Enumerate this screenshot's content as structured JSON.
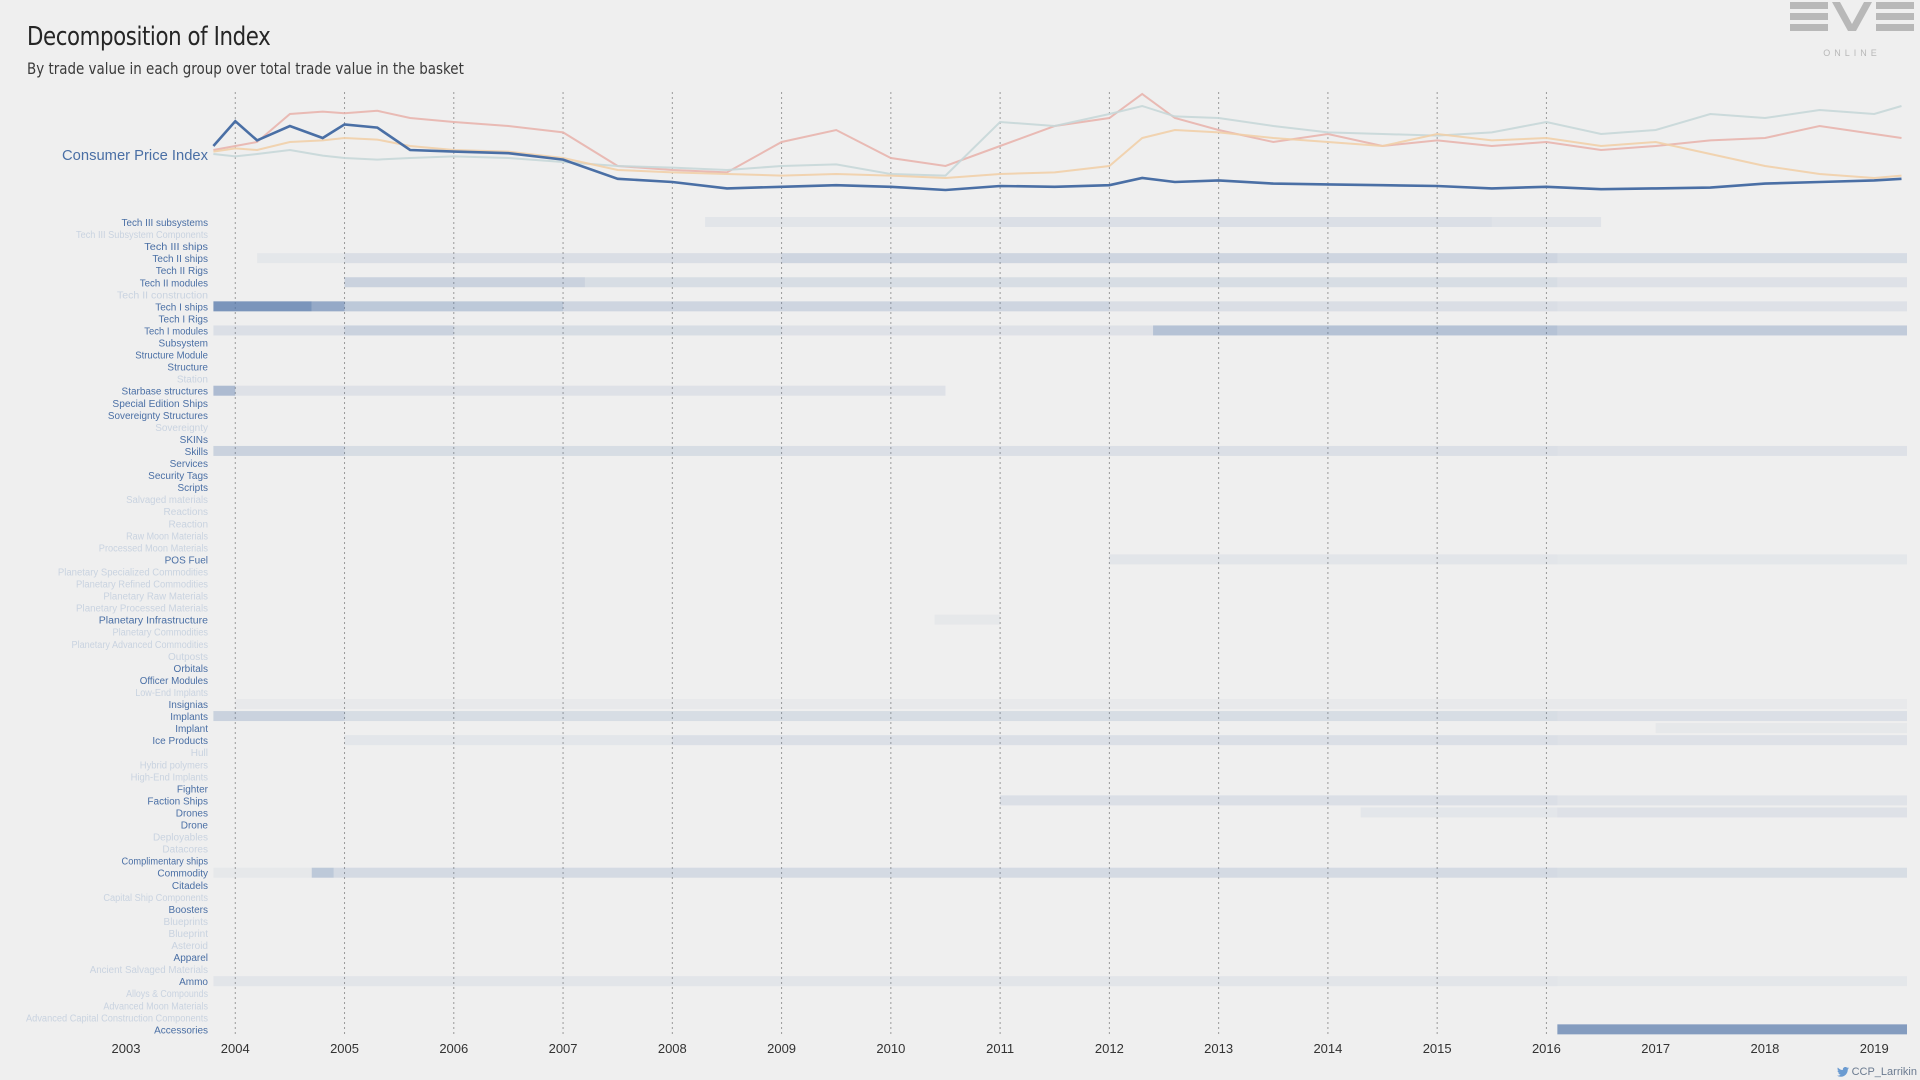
{
  "header": {
    "title": "Decomposition of Index",
    "subtitle": "By trade value in each group over total trade value in the basket"
  },
  "logo": {
    "main": "EVE",
    "sub": "ONLINE"
  },
  "credit": {
    "icon": "twitter-icon",
    "handle": "CCP_Larrikin"
  },
  "colors": {
    "background": "#efefef",
    "cpi_line": "#4a6fa5",
    "label_strong": "#4a6fa5",
    "label_faint": "#c9d3e0",
    "heat_base": "#4a6fa5",
    "series_colors": [
      "#e8b4ad",
      "#c7d7d8",
      "#f1cfa8"
    ]
  },
  "chart_data": [
    {
      "type": "line",
      "ylabel": "Consumer Price Index",
      "x": [
        2003.8,
        2004.0,
        2004.2,
        2004.5,
        2004.8,
        2005.0,
        2005.3,
        2005.6,
        2006.0,
        2006.5,
        2007.0,
        2007.5,
        2008.0,
        2008.5,
        2009.0,
        2009.5,
        2010.0,
        2010.5,
        2011.0,
        2011.5,
        2012.0,
        2012.3,
        2012.6,
        2013.0,
        2013.5,
        2014.0,
        2014.5,
        2015.0,
        2015.5,
        2016.0,
        2016.5,
        2017.0,
        2017.5,
        2018.0,
        2018.5,
        2019.0,
        2019.25
      ],
      "series": [
        {
          "values": [
            0.55,
            0.86,
            0.62,
            0.8,
            0.65,
            0.82,
            0.78,
            0.5,
            0.48,
            0.46,
            0.38,
            0.14,
            0.1,
            0.02,
            0.04,
            0.06,
            0.04,
            0.0,
            0.05,
            0.04,
            0.06,
            0.15,
            0.1,
            0.12,
            0.08,
            0.07,
            0.06,
            0.05,
            0.02,
            0.04,
            0.01,
            0.02,
            0.03,
            0.08,
            0.1,
            0.12,
            0.14
          ]
        },
        {
          "values": [
            0.5,
            0.55,
            0.6,
            0.95,
            0.98,
            0.96,
            0.99,
            0.9,
            0.85,
            0.8,
            0.72,
            0.3,
            0.25,
            0.22,
            0.6,
            0.75,
            0.4,
            0.3,
            0.55,
            0.8,
            0.9,
            1.2,
            0.9,
            0.75,
            0.6,
            0.7,
            0.55,
            0.62,
            0.55,
            0.6,
            0.5,
            0.55,
            0.62,
            0.65,
            0.8,
            0.7,
            0.65
          ]
        },
        {
          "values": [
            0.45,
            0.42,
            0.45,
            0.5,
            0.43,
            0.4,
            0.38,
            0.4,
            0.42,
            0.4,
            0.35,
            0.3,
            0.28,
            0.25,
            0.3,
            0.32,
            0.2,
            0.18,
            0.85,
            0.8,
            0.95,
            1.05,
            0.92,
            0.9,
            0.8,
            0.72,
            0.7,
            0.68,
            0.72,
            0.85,
            0.7,
            0.75,
            0.95,
            0.9,
            1.0,
            0.95,
            1.05
          ]
        },
        {
          "values": [
            0.48,
            0.52,
            0.5,
            0.6,
            0.62,
            0.65,
            0.63,
            0.55,
            0.5,
            0.48,
            0.4,
            0.25,
            0.22,
            0.2,
            0.18,
            0.2,
            0.18,
            0.15,
            0.2,
            0.22,
            0.3,
            0.65,
            0.75,
            0.72,
            0.65,
            0.6,
            0.55,
            0.7,
            0.62,
            0.65,
            0.55,
            0.6,
            0.45,
            0.3,
            0.2,
            0.15,
            0.18
          ]
        }
      ]
    },
    {
      "type": "heatmap",
      "x_ticks": [
        "2003",
        "2004",
        "2005",
        "2006",
        "2007",
        "2008",
        "2009",
        "2010",
        "2011",
        "2012",
        "2013",
        "2014",
        "2015",
        "2016",
        "2017",
        "2018",
        "2019"
      ],
      "vlines": [
        2004,
        2005,
        2006,
        2007,
        2008,
        2009,
        2010,
        2011,
        2012,
        2013,
        2014,
        2015,
        2016
      ],
      "xlim": [
        2003.0,
        2019.3
      ],
      "rows": [
        {
          "label": "Tech III subsystems",
          "strong": true,
          "spans": [
            [
              2008.3,
              2011.0,
              0.08
            ],
            [
              2011.0,
              2015.5,
              0.12
            ],
            [
              2015.5,
              2016.5,
              0.09
            ]
          ]
        },
        {
          "label": "Tech III Subsystem Components",
          "strong": false,
          "spans": []
        },
        {
          "label": "Tech III ships",
          "strong": true,
          "spans": []
        },
        {
          "label": "Tech II ships",
          "strong": true,
          "spans": [
            [
              2004.2,
              2005.0,
              0.06
            ],
            [
              2005.0,
              2009.0,
              0.13
            ],
            [
              2009.0,
              2016.1,
              0.2
            ],
            [
              2016.1,
              2019.3,
              0.15
            ]
          ]
        },
        {
          "label": "Tech II Rigs",
          "strong": true,
          "spans": []
        },
        {
          "label": "Tech II modules",
          "strong": true,
          "spans": [
            [
              2005.0,
              2007.2,
              0.22
            ],
            [
              2007.2,
              2016.1,
              0.14
            ],
            [
              2016.1,
              2019.3,
              0.1
            ]
          ]
        },
        {
          "label": "Tech II construction",
          "strong": false,
          "spans": []
        },
        {
          "label": "Tech I ships",
          "strong": true,
          "spans": [
            [
              2003.8,
              2004.7,
              0.7
            ],
            [
              2004.7,
              2005.0,
              0.55
            ],
            [
              2005.0,
              2007.0,
              0.3
            ],
            [
              2007.0,
              2012.0,
              0.2
            ],
            [
              2012.0,
              2016.1,
              0.13
            ],
            [
              2016.1,
              2019.3,
              0.1
            ]
          ]
        },
        {
          "label": "Tech I Rigs",
          "strong": true,
          "spans": []
        },
        {
          "label": "Tech I modules",
          "strong": true,
          "spans": [
            [
              2003.8,
              2005.0,
              0.12
            ],
            [
              2005.0,
              2006.0,
              0.22
            ],
            [
              2006.0,
              2009.0,
              0.14
            ],
            [
              2009.0,
              2012.4,
              0.1
            ],
            [
              2012.4,
              2016.1,
              0.35
            ],
            [
              2016.1,
              2019.3,
              0.28
            ]
          ]
        },
        {
          "label": "Subsystem",
          "strong": true,
          "spans": []
        },
        {
          "label": "Structure Module",
          "strong": true,
          "spans": []
        },
        {
          "label": "Structure",
          "strong": true,
          "spans": []
        },
        {
          "label": "Station",
          "strong": false,
          "spans": []
        },
        {
          "label": "Starbase structures",
          "strong": true,
          "spans": [
            [
              2003.8,
              2004.0,
              0.4
            ],
            [
              2004.0,
              2010.5,
              0.1
            ]
          ]
        },
        {
          "label": "Special Edition Ships",
          "strong": true,
          "spans": []
        },
        {
          "label": "Sovereignty Structures",
          "strong": true,
          "spans": []
        },
        {
          "label": "Sovereignty",
          "strong": false,
          "spans": []
        },
        {
          "label": "SKINs",
          "strong": true,
          "spans": []
        },
        {
          "label": "Skills",
          "strong": true,
          "spans": [
            [
              2003.8,
              2005.0,
              0.22
            ],
            [
              2005.0,
              2009.0,
              0.14
            ],
            [
              2009.0,
              2016.1,
              0.12
            ],
            [
              2016.1,
              2019.3,
              0.1
            ]
          ]
        },
        {
          "label": "Services",
          "strong": true,
          "spans": []
        },
        {
          "label": "Security Tags",
          "strong": true,
          "spans": []
        },
        {
          "label": "Scripts",
          "strong": true,
          "spans": []
        },
        {
          "label": "Salvaged materials",
          "strong": false,
          "spans": []
        },
        {
          "label": "Reactions",
          "strong": false,
          "spans": []
        },
        {
          "label": "Reaction",
          "strong": false,
          "spans": []
        },
        {
          "label": "Raw Moon Materials",
          "strong": false,
          "spans": []
        },
        {
          "label": "Processed Moon Materials",
          "strong": false,
          "spans": []
        },
        {
          "label": "POS Fuel",
          "strong": true,
          "spans": [
            [
              2012.0,
              2016.1,
              0.08
            ],
            [
              2016.1,
              2019.3,
              0.06
            ]
          ]
        },
        {
          "label": "Planetary Specialized Commodities",
          "strong": false,
          "spans": []
        },
        {
          "label": "Planetary Refined Commodities",
          "strong": false,
          "spans": []
        },
        {
          "label": "Planetary Raw Materials",
          "strong": false,
          "spans": []
        },
        {
          "label": "Planetary Processed Materials",
          "strong": false,
          "spans": []
        },
        {
          "label": "Planetary Infrastructure",
          "strong": true,
          "spans": [
            [
              2010.4,
              2011.0,
              0.05
            ]
          ]
        },
        {
          "label": "Planetary Commodities",
          "strong": false,
          "spans": []
        },
        {
          "label": "Planetary Advanced Commodities",
          "strong": false,
          "spans": []
        },
        {
          "label": "Outposts",
          "strong": false,
          "spans": []
        },
        {
          "label": "Orbitals",
          "strong": true,
          "spans": []
        },
        {
          "label": "Officer Modules",
          "strong": true,
          "spans": []
        },
        {
          "label": "Low-End Implants",
          "strong": false,
          "spans": []
        },
        {
          "label": "Insignias",
          "strong": true,
          "spans": [
            [
              2004.0,
              2019.3,
              0.04
            ]
          ]
        },
        {
          "label": "Implants",
          "strong": true,
          "spans": [
            [
              2003.8,
              2005.0,
              0.22
            ],
            [
              2005.0,
              2016.1,
              0.14
            ],
            [
              2016.1,
              2019.3,
              0.12
            ]
          ]
        },
        {
          "label": "Implant",
          "strong": true,
          "spans": [
            [
              2017.0,
              2019.3,
              0.05
            ]
          ]
        },
        {
          "label": "Ice Products",
          "strong": true,
          "spans": [
            [
              2005.0,
              2008.0,
              0.07
            ],
            [
              2008.0,
              2016.1,
              0.12
            ],
            [
              2016.1,
              2019.3,
              0.1
            ]
          ]
        },
        {
          "label": "Hull",
          "strong": false,
          "spans": []
        },
        {
          "label": "Hybrid polymers",
          "strong": false,
          "spans": []
        },
        {
          "label": "High-End Implants",
          "strong": false,
          "spans": []
        },
        {
          "label": "Fighter",
          "strong": true,
          "spans": []
        },
        {
          "label": "Faction Ships",
          "strong": true,
          "spans": [
            [
              2011.0,
              2016.1,
              0.12
            ],
            [
              2016.1,
              2019.3,
              0.09
            ]
          ]
        },
        {
          "label": "Drones",
          "strong": true,
          "spans": [
            [
              2014.3,
              2016.1,
              0.07
            ],
            [
              2016.1,
              2019.3,
              0.1
            ]
          ]
        },
        {
          "label": "Drone",
          "strong": true,
          "spans": []
        },
        {
          "label": "Deployables",
          "strong": false,
          "spans": []
        },
        {
          "label": "Datacores",
          "strong": false,
          "spans": []
        },
        {
          "label": "Complimentary ships",
          "strong": true,
          "spans": []
        },
        {
          "label": "Commodity",
          "strong": true,
          "spans": [
            [
              2003.8,
              2004.7,
              0.05
            ],
            [
              2004.7,
              2004.9,
              0.3
            ],
            [
              2004.9,
              2016.1,
              0.16
            ],
            [
              2016.1,
              2019.3,
              0.14
            ]
          ]
        },
        {
          "label": "Citadels",
          "strong": true,
          "spans": []
        },
        {
          "label": "Capital Ship Components",
          "strong": false,
          "spans": []
        },
        {
          "label": "Boosters",
          "strong": true,
          "spans": []
        },
        {
          "label": "Blueprints",
          "strong": false,
          "spans": []
        },
        {
          "label": "Blueprint",
          "strong": false,
          "spans": []
        },
        {
          "label": "Asteroid",
          "strong": false,
          "spans": []
        },
        {
          "label": "Apparel",
          "strong": true,
          "spans": []
        },
        {
          "label": "Ancient Salvaged Materials",
          "strong": false,
          "spans": []
        },
        {
          "label": "Ammo",
          "strong": true,
          "spans": [
            [
              2003.8,
              2016.1,
              0.08
            ],
            [
              2016.1,
              2019.3,
              0.06
            ]
          ]
        },
        {
          "label": "Alloys & Compounds",
          "strong": false,
          "spans": []
        },
        {
          "label": "Advanced Moon Materials",
          "strong": false,
          "spans": []
        },
        {
          "label": "Advanced Capital Construction Components",
          "strong": false,
          "spans": []
        },
        {
          "label": "Accessories",
          "strong": true,
          "spans": [
            [
              2016.1,
              2019.3,
              0.65
            ]
          ]
        }
      ]
    }
  ]
}
